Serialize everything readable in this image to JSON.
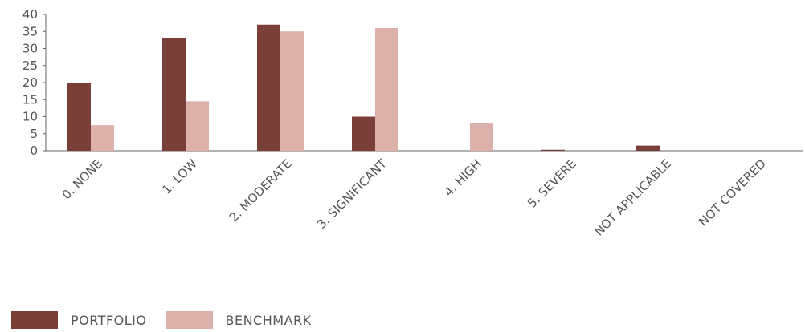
{
  "chart_data": {
    "type": "bar",
    "categories": [
      "0. NONE",
      "1. LOW",
      "2. MODERATE",
      "3. SIGNIFICANT",
      "4. HIGH",
      "5. SEVERE",
      "NOT APPLICABLE",
      "NOT COVERED"
    ],
    "series": [
      {
        "name": "PORTFOLIO",
        "values": [
          20,
          33,
          37,
          10,
          0,
          0.3,
          1.5,
          0
        ],
        "color": "#7b3f3a"
      },
      {
        "name": "BENCHMARK",
        "values": [
          7.5,
          14.5,
          35,
          36,
          8,
          0,
          0,
          0
        ],
        "color": "#dcb1aa"
      }
    ],
    "yticks": [
      "0",
      "5",
      "10",
      "15",
      "20",
      "25",
      "30",
      "35",
      "40"
    ],
    "ylim": [
      0,
      40
    ],
    "grid": false,
    "legend_position": "bottom-left",
    "title": "",
    "xlabel": "",
    "ylabel": ""
  }
}
